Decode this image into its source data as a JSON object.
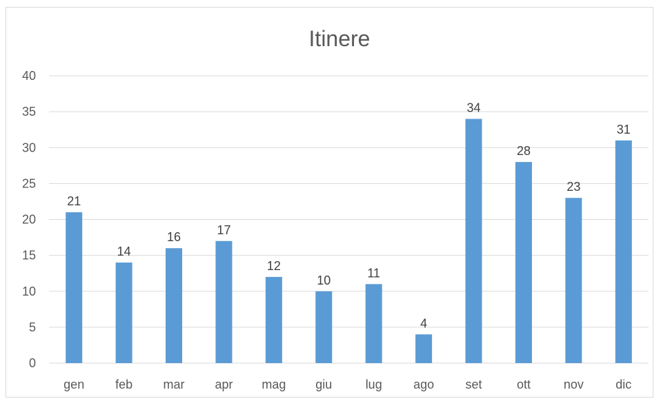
{
  "chart_data": {
    "type": "bar",
    "title": "Itinere",
    "categories": [
      "gen",
      "feb",
      "mar",
      "apr",
      "mag",
      "giu",
      "lug",
      "ago",
      "set",
      "ott",
      "nov",
      "dic"
    ],
    "values": [
      21,
      14,
      16,
      17,
      12,
      10,
      11,
      4,
      34,
      28,
      23,
      31
    ],
    "ylim": [
      0,
      40
    ],
    "yticks": [
      0,
      5,
      10,
      15,
      20,
      25,
      30,
      35,
      40
    ],
    "grid": true,
    "legend": "none",
    "data_labels": true,
    "colors": {
      "bar": "#5b9bd5",
      "gridline": "#d9d9d9",
      "axis_text": "#595959",
      "label_text": "#404040"
    }
  }
}
